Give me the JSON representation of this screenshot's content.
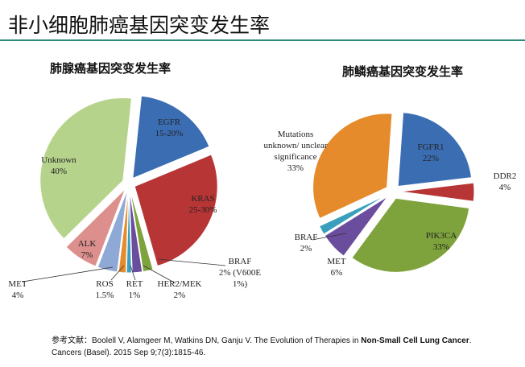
{
  "title": "非小细胞肺癌基因突变发生率",
  "reference": [
    "参考文献：Boolell V, Alamgeer M, Watkins DN, Ganju V. The Evolution of Therapies in ",
    "Non-Small Cell Lung Cancer",
    ". Cancers (Basel). 2015 Sep 9;7(3):1815-46."
  ],
  "chart_data": [
    {
      "type": "pie",
      "title": "肺腺癌基因突变发生率",
      "categories": [
        "EGFR",
        "KRAS",
        "BRAF",
        "HER2/MEK",
        "RET",
        "ROS",
        "MET",
        "ALK",
        "Unknown"
      ],
      "values": [
        17.5,
        27.5,
        2,
        2,
        1,
        1.5,
        4,
        7,
        40
      ],
      "value_labels": [
        "15-20%",
        "25-30%",
        "2% (V600E 1%)",
        "2%",
        "1%",
        "1.5%",
        "4%",
        "7%",
        "40%"
      ],
      "colors": [
        "#3b6db3",
        "#b83536",
        "#7fa33c",
        "#6b4d9d",
        "#3a9fbd",
        "#e68b2c",
        "#8ea9d6",
        "#dc8f8d",
        "#b6d38b"
      ]
    },
    {
      "type": "pie",
      "title": "肺鳞癌基因突变发生率",
      "categories": [
        "FGFR1",
        "DDR2",
        "PIK3CA",
        "MET",
        "BRAF",
        "Mutations unknown/ unclear significance"
      ],
      "values": [
        22,
        4,
        33,
        6,
        2,
        33
      ],
      "value_labels": [
        "22%",
        "4%",
        "33%",
        "6%",
        "2%",
        "33%"
      ],
      "colors": [
        "#3b6db3",
        "#b83536",
        "#7fa33c",
        "#6b4d9d",
        "#3a9fbd",
        "#e68b2c"
      ]
    }
  ]
}
